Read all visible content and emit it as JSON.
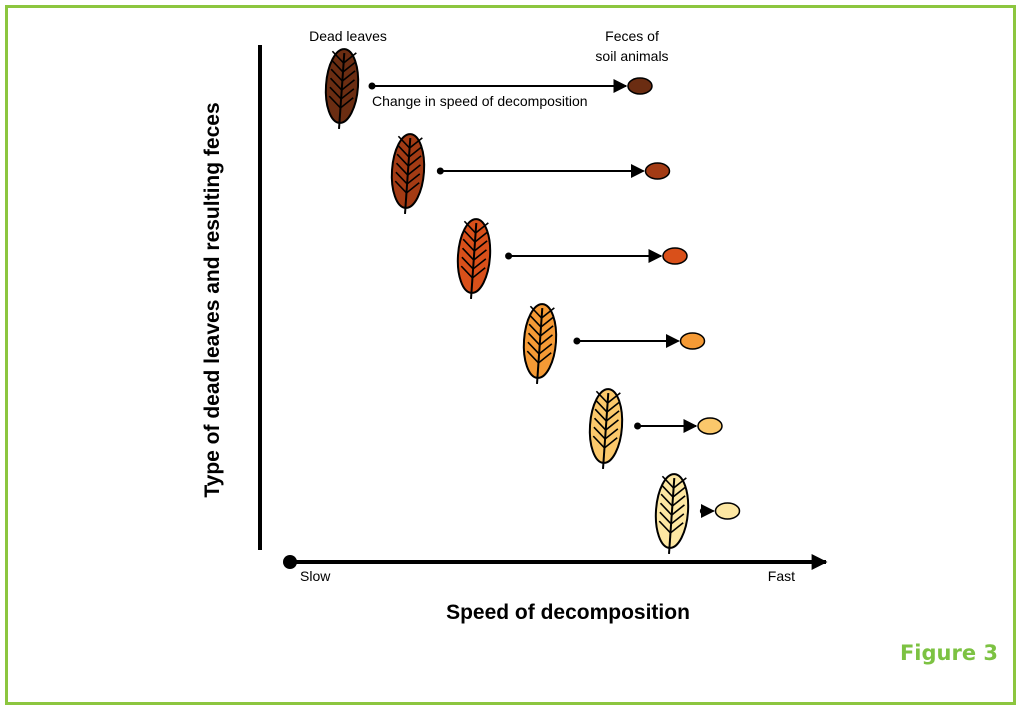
{
  "labels": {
    "dead_leaves": "Dead leaves",
    "feces_line1": "Feces of",
    "feces_line2": "soil animals",
    "arrow_caption": "Change in speed of decomposition",
    "y_axis": "Type of dead leaves and resulting feces",
    "x_axis": "Speed of decomposition",
    "slow": "Slow",
    "fast": "Fast",
    "figure": "Figure 3"
  },
  "items": [
    {
      "leaf_color": "#6b2d12",
      "feces_color": "#6b2d12",
      "decomposition_length": 1.0
    },
    {
      "leaf_color": "#a33b14",
      "feces_color": "#a33b14",
      "decomposition_length": 0.8
    },
    {
      "leaf_color": "#d9501a",
      "feces_color": "#d9501a",
      "decomposition_length": 0.6
    },
    {
      "leaf_color": "#f59a35",
      "feces_color": "#f59a35",
      "decomposition_length": 0.4
    },
    {
      "leaf_color": "#fbc86b",
      "feces_color": "#fbc86b",
      "decomposition_length": 0.23
    },
    {
      "leaf_color": "#fde7a2",
      "feces_color": "#fde7a2",
      "decomposition_length": 0.04
    }
  ],
  "colors": {
    "frame": "#8cc63f",
    "figure_label": "#7cc242"
  }
}
